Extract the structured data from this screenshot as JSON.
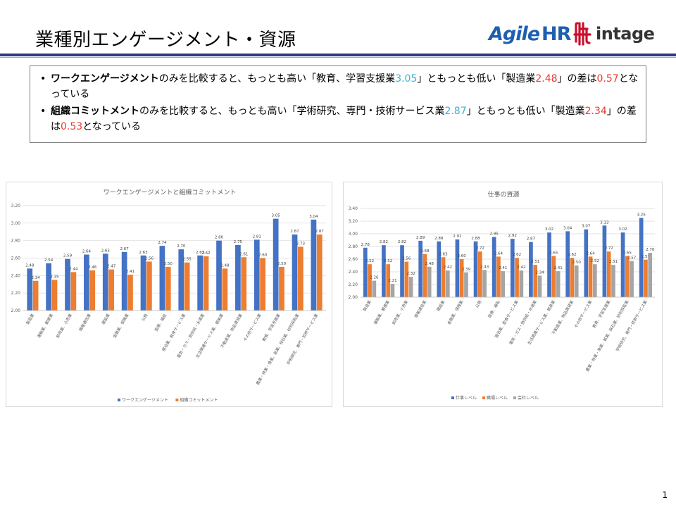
{
  "header": {
    "title": "業種別エンゲージメント・資源",
    "logo_agile_1": "Agile",
    "logo_agile_2": "HR",
    "logo_intage": "intage"
  },
  "summary": {
    "bullet1": {
      "p1": "ワークエンゲージメント",
      "p2": "のみを比較すると、もっとも高い「教育、学習支援業",
      "v1": "3.05",
      "p3": "」ともっとも低い「製造業",
      "v2": "2.48",
      "p4": "」の差は",
      "v3": "0.57",
      "p5": "となっている"
    },
    "bullet2": {
      "p1": "組織コミットメント",
      "p2": "のみを比較すると、もっとも高い「学術研究、専門・技術サービス業",
      "v1": "2.87",
      "p3": "」ともっとも低い「製造業",
      "v2": "2.34",
      "p4": "」の差は",
      "v3": "0.53",
      "p5": "となっている"
    }
  },
  "colors": {
    "blue": "#4472c4",
    "orange": "#ed7d31",
    "gray": "#a5a5a5",
    "cyan_value": "#3fb2d3",
    "red_value": "#e83a2e",
    "title_rule": "#2e3a86"
  },
  "chart_data": [
    {
      "type": "bar",
      "title": "ワークエンゲージメントと組織コミットメント",
      "categories": [
        "製造業",
        "運輸業、郵便業",
        "卸売業、小売業",
        "情報通信業",
        "建設業",
        "金融業、保険業",
        "公務",
        "医療、福祉",
        "宿泊業、飲食サービス業",
        "電気・ガス・熱供給・水道業",
        "生活関連サービス業、娯楽業",
        "不動産業、物品賃貸業",
        "その他サービス業",
        "教育、学習支援業",
        "農業・林業・漁業、鉱業、採石業、砂利採取業",
        "学術研究、専門・技術サービス業"
      ],
      "series": [
        {
          "name": "ワークエンゲージメント",
          "color": "#4472c4",
          "values": [
            2.48,
            2.54,
            2.59,
            2.64,
            2.65,
            2.67,
            2.63,
            2.74,
            2.7,
            2.63,
            2.8,
            2.75,
            2.81,
            3.05,
            2.87,
            3.04
          ]
        },
        {
          "name": "組織コミットメント",
          "color": "#ed7d31",
          "values": [
            2.34,
            2.35,
            2.44,
            2.46,
            2.47,
            2.41,
            2.56,
            2.5,
            2.55,
            2.62,
            2.48,
            2.61,
            2.6,
            2.5,
            2.73,
            2.87
          ]
        }
      ],
      "ylim": [
        2.0,
        3.2
      ],
      "yticks": [
        "2.00",
        "2.20",
        "2.40",
        "2.60",
        "2.80",
        "3.00",
        "3.20"
      ],
      "grid": true,
      "legend": "bottom"
    },
    {
      "type": "bar",
      "title": "仕事の資源",
      "categories": [
        "製造業",
        "運輸業、郵便業",
        "卸売業、小売業",
        "情報通信業",
        "建設業",
        "金融業、保険業",
        "公務",
        "医療、福祉",
        "宿泊業、飲食サービス業",
        "電気・ガス・熱供給・水道業",
        "生活関連サービス業、娯楽業",
        "不動産業、物品賃貸業",
        "その他サービス業",
        "教育、学習支援業",
        "農業・林業・漁業、鉱業、採石業、砂利採取業",
        "学術研究、専門・技術サービス業"
      ],
      "series": [
        {
          "name": "仕事レベル",
          "color": "#4472c4",
          "values": [
            2.78,
            2.82,
            2.82,
            2.89,
            2.88,
            2.91,
            2.88,
            2.95,
            2.92,
            2.87,
            3.02,
            3.04,
            3.07,
            3.13,
            3.02,
            3.25
          ]
        },
        {
          "name": "職場レベル",
          "color": "#ed7d31",
          "values": [
            2.52,
            2.52,
            2.56,
            2.68,
            2.63,
            2.6,
            2.72,
            2.64,
            2.62,
            2.51,
            2.65,
            2.62,
            2.64,
            2.72,
            2.65,
            2.59
          ]
        },
        {
          "name": "会社レベル",
          "color": "#a5a5a5",
          "values": [
            2.26,
            2.21,
            2.32,
            2.48,
            2.42,
            2.39,
            2.43,
            2.41,
            2.42,
            2.34,
            2.41,
            2.5,
            2.52,
            2.51,
            2.57,
            2.7
          ]
        }
      ],
      "ylim": [
        2.0,
        3.4
      ],
      "yticks": [
        "2.00",
        "2.20",
        "2.40",
        "2.60",
        "2.80",
        "3.00",
        "3.20",
        "3.40"
      ],
      "grid": true,
      "legend": "bottom"
    }
  ],
  "page_number": "1"
}
